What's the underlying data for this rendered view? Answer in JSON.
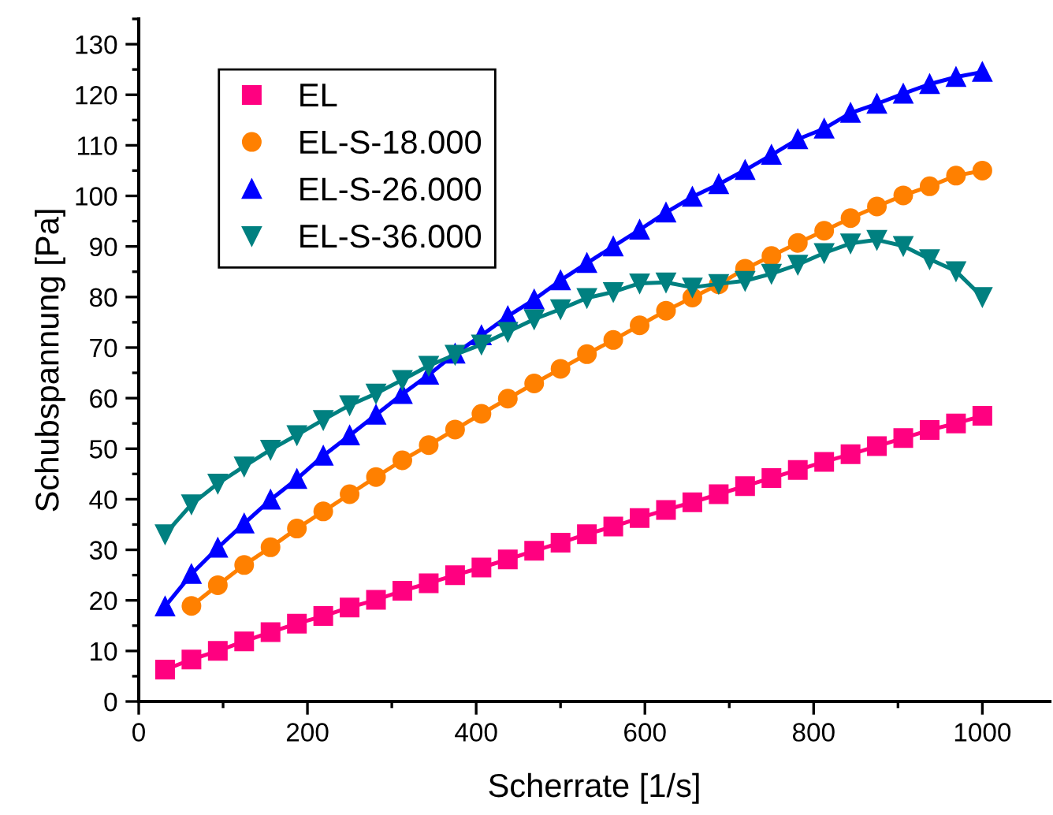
{
  "chart_data": {
    "type": "line",
    "xlabel": "Scherrate [1/s]",
    "ylabel": "Schubspannung [Pa]",
    "x": [
      31.25,
      62.5,
      93.75,
      125,
      156.25,
      187.5,
      218.75,
      250,
      281.25,
      312.5,
      343.75,
      375,
      406.25,
      437.5,
      468.75,
      500,
      531.25,
      562.5,
      593.75,
      625,
      656.25,
      687.5,
      718.75,
      750,
      781.25,
      812.5,
      843.75,
      875,
      906.25,
      937.5,
      968.75,
      1000
    ],
    "series": [
      {
        "name": "EL",
        "color": "#ff0080",
        "marker": "square",
        "values": [
          6.3,
          8.3,
          10,
          11.9,
          13.7,
          15.4,
          16.9,
          18.6,
          20.1,
          21.9,
          23.4,
          25,
          26.5,
          28.1,
          29.8,
          31.4,
          33.1,
          34.6,
          36.3,
          37.9,
          39.4,
          41,
          42.6,
          44.2,
          45.8,
          47.4,
          48.9,
          50.5,
          52.1,
          53.7,
          55,
          56.5
        ]
      },
      {
        "name": "EL-S-18.000",
        "color": "#ff8000",
        "marker": "circle",
        "values": [
          null,
          18.9,
          23,
          27,
          30.5,
          34.2,
          37.6,
          41,
          44.4,
          47.7,
          50.7,
          53.8,
          56.9,
          59.9,
          62.9,
          65.8,
          68.7,
          71.5,
          74.4,
          77.3,
          79.9,
          82.5,
          85.6,
          88.1,
          90.7,
          93.1,
          95.6,
          97.9,
          100.1,
          101.9,
          104,
          105
        ]
      },
      {
        "name": "EL-S-26.000",
        "color": "#0000ff",
        "marker": "triangle",
        "values": [
          18.8,
          25.2,
          30.4,
          35.2,
          39.9,
          44,
          48.6,
          52.6,
          56.7,
          60.8,
          64.6,
          68.8,
          72.4,
          76.2,
          79.5,
          83.3,
          86.7,
          90,
          93.3,
          96.7,
          99.8,
          102.3,
          105.1,
          108.1,
          111.2,
          113.3,
          116.4,
          118.2,
          120.2,
          122.1,
          123.5,
          124.5
        ]
      },
      {
        "name": "EL-S-36.000",
        "color": "#008080",
        "marker": "triangle_down",
        "values": [
          33.1,
          39,
          43.1,
          46.5,
          49.8,
          52.7,
          55.7,
          58.6,
          60.9,
          63.6,
          66.4,
          68.6,
          70.6,
          73.1,
          75.6,
          77.6,
          79.8,
          81,
          82.7,
          82.9,
          81.9,
          82.6,
          83.2,
          84.6,
          86.4,
          88.7,
          90.6,
          91.3,
          90.1,
          87.5,
          85.1,
          80
        ]
      }
    ],
    "xlim": [
      0,
      1080
    ],
    "xticks": [
      0,
      200,
      400,
      600,
      800,
      1000
    ],
    "ylim": [
      0,
      135
    ],
    "yticks": [
      0,
      10,
      20,
      30,
      40,
      50,
      60,
      70,
      80,
      90,
      100,
      110,
      120,
      130
    ],
    "grid": false,
    "legend": "top left",
    "line_style": "solid"
  }
}
